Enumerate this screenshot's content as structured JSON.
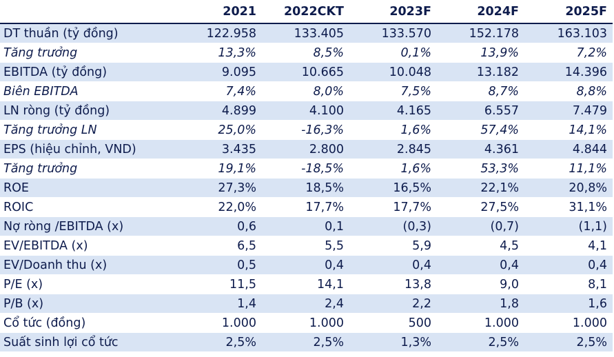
{
  "table": {
    "columns": [
      "",
      "2021",
      "2022CKT",
      "2023F",
      "2024F",
      "2025F"
    ],
    "rows": [
      {
        "label": "DT thuần (tỷ đồng)",
        "values": [
          "122.958",
          "133.405",
          "133.570",
          "152.178",
          "163.103"
        ],
        "italic": false,
        "shade": true
      },
      {
        "label": "Tăng trưởng",
        "values": [
          "13,3%",
          "8,5%",
          "0,1%",
          "13,9%",
          "7,2%"
        ],
        "italic": true,
        "shade": false
      },
      {
        "label": "EBITDA (tỷ đồng)",
        "values": [
          "9.095",
          "10.665",
          "10.048",
          "13.182",
          "14.396"
        ],
        "italic": false,
        "shade": true
      },
      {
        "label": "Biên EBITDA",
        "values": [
          "7,4%",
          "8,0%",
          "7,5%",
          "8,7%",
          "8,8%"
        ],
        "italic": true,
        "shade": false
      },
      {
        "label": "LN ròng (tỷ đồng)",
        "values": [
          "4.899",
          "4.100",
          "4.165",
          "6.557",
          "7.479"
        ],
        "italic": false,
        "shade": true
      },
      {
        "label": "Tăng trưởng LN",
        "values": [
          "25,0%",
          "-16,3%",
          "1,6%",
          "57,4%",
          "14,1%"
        ],
        "italic": true,
        "shade": false
      },
      {
        "label": "EPS (hiệu chỉnh, VND)",
        "values": [
          "3.435",
          "2.800",
          "2.845",
          "4.361",
          "4.844"
        ],
        "italic": false,
        "shade": true
      },
      {
        "label": "Tăng trưởng",
        "values": [
          "19,1%",
          "-18,5%",
          "1,6%",
          "53,3%",
          "11,1%"
        ],
        "italic": true,
        "shade": false
      },
      {
        "label": "ROE",
        "values": [
          "27,3%",
          "18,5%",
          "16,5%",
          "22,1%",
          "20,8%"
        ],
        "italic": false,
        "shade": true
      },
      {
        "label": "ROIC",
        "values": [
          "22,0%",
          "17,7%",
          "17,7%",
          "27,5%",
          "31,1%"
        ],
        "italic": false,
        "shade": false
      },
      {
        "label": "Nợ ròng /EBITDA (x)",
        "values": [
          "0,6",
          "0,1",
          "(0,3)",
          "(0,7)",
          "(1,1)"
        ],
        "italic": false,
        "shade": true
      },
      {
        "label": "EV/EBITDA (x)",
        "values": [
          "6,5",
          "5,5",
          "5,9",
          "4,5",
          "4,1"
        ],
        "italic": false,
        "shade": false
      },
      {
        "label": "EV/Doanh thu (x)",
        "values": [
          "0,5",
          "0,4",
          "0,4",
          "0,4",
          "0,4"
        ],
        "italic": false,
        "shade": true
      },
      {
        "label": "P/E (x)",
        "values": [
          "11,5",
          "14,1",
          "13,8",
          "9,0",
          "8,1"
        ],
        "italic": false,
        "shade": false
      },
      {
        "label": "P/B (x)",
        "values": [
          "1,4",
          "2,4",
          "2,2",
          "1,8",
          "1,6"
        ],
        "italic": false,
        "shade": true
      },
      {
        "label": "Cổ tức (đồng)",
        "values": [
          "1.000",
          "1.000",
          "500",
          "1.000",
          "1.000"
        ],
        "italic": false,
        "shade": false
      },
      {
        "label": "Suất sinh lợi cổ tức",
        "values": [
          "2,5%",
          "2,5%",
          "1,3%",
          "2,5%",
          "2,5%"
        ],
        "italic": false,
        "shade": true
      }
    ]
  },
  "colors": {
    "text": "#0d1b4c",
    "row_shade": "#d9e4f4",
    "background": "#ffffff"
  }
}
